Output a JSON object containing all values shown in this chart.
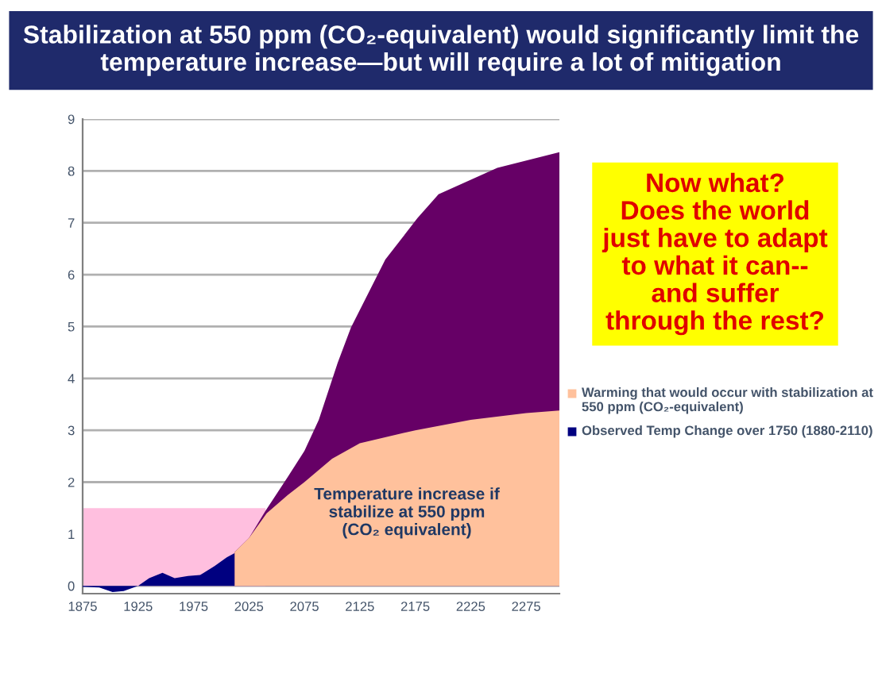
{
  "chart_data": {
    "type": "area",
    "title": "Stabilization at 550 ppm (CO₂-equivalent) would significantly limit the temperature increase—but will require a lot of mitigation",
    "annotations": [
      "Now what?\nDoes the world\njust have to adapt\nto what it can--\nand suffer\nthrough the rest?",
      "Temperature increase if\nstabilize at 550 ppm\n(CO₂ equivalent)"
    ],
    "series": [
      {
        "color": "#ffbfdf",
        "x": [
          1875,
          2040
        ],
        "values": [
          1.5,
          1.5
        ]
      },
      {
        "color": "#660066",
        "x": [
          2012,
          2025,
          2040,
          2060,
          2075,
          2088,
          2105,
          2117,
          2148,
          2177,
          2196,
          2249,
          2305
        ],
        "values": [
          0.65,
          0.92,
          1.45,
          2.1,
          2.6,
          3.2,
          4.3,
          4.98,
          6.29,
          7.09,
          7.55,
          8.06,
          8.36
        ]
      },
      {
        "name": "Warming that would occur with stabilization at 550 ppm (CO₂-equivalent)",
        "color": "#ffc19c",
        "x": [
          2012,
          2025,
          2041,
          2060,
          2075,
          2100,
          2125,
          2175,
          2225,
          2275,
          2305
        ],
        "values": [
          0.65,
          0.92,
          1.4,
          1.75,
          2.0,
          2.45,
          2.75,
          3.0,
          3.2,
          3.33,
          3.38
        ]
      },
      {
        "name": "Observed Temp Change over 1750 (1880-2110)",
        "color": "#000080",
        "x": [
          1875,
          1890,
          1902,
          1912,
          1925,
          1935,
          1947,
          1958,
          1970,
          1981,
          1994,
          2005,
          2012
        ],
        "values": [
          -0.02,
          -0.03,
          -0.12,
          -0.1,
          0,
          0.15,
          0.25,
          0.15,
          0.19,
          0.21,
          0.38,
          0.55,
          0.63
        ]
      }
    ],
    "xlim": [
      1875,
      2305
    ],
    "xticks": [
      1875,
      1925,
      1975,
      2025,
      2075,
      2125,
      2175,
      2225,
      2275
    ],
    "ylim": [
      -0.15,
      9
    ],
    "yticks": [
      0,
      1,
      2,
      3,
      4,
      5,
      6,
      7,
      8,
      9
    ],
    "grid": "y",
    "legend": "right"
  }
}
